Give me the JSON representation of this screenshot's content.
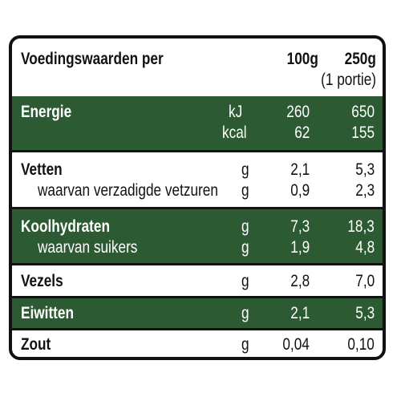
{
  "header": {
    "title": "Voedingswaarden per",
    "col_100g": "100g",
    "col_250g": "250g",
    "col_250g_sub": "(1 portie)"
  },
  "rows": {
    "energie": {
      "label": "Energie",
      "unit1": "kJ",
      "v100_1": "260",
      "v250_1": "650",
      "unit2": "kcal",
      "v100_2": "62",
      "v250_2": "155"
    },
    "vetten": {
      "label": "Vetten",
      "unit": "g",
      "v100": "2,1",
      "v250": "5,3",
      "sub_label": "waarvan verzadigde vetzuren",
      "sub_unit": "g",
      "sub_v100": "0,9",
      "sub_v250": "2,3"
    },
    "koolhydraten": {
      "label": "Koolhydraten",
      "unit": "g",
      "v100": "7,3",
      "v250": "18,3",
      "sub_label": "waarvan suikers",
      "sub_unit": "g",
      "sub_v100": "1,9",
      "sub_v250": "4,8"
    },
    "vezels": {
      "label": "Vezels",
      "unit": "g",
      "v100": "2,8",
      "v250": "7,0"
    },
    "eiwitten": {
      "label": "Eiwitten",
      "unit": "g",
      "v100": "2,1",
      "v250": "5,3"
    },
    "zout": {
      "label": "Zout",
      "unit": "g",
      "v100": "0,04",
      "v250": "0,10"
    }
  },
  "colors": {
    "green_band": "#2c5a33",
    "border": "#111111"
  }
}
